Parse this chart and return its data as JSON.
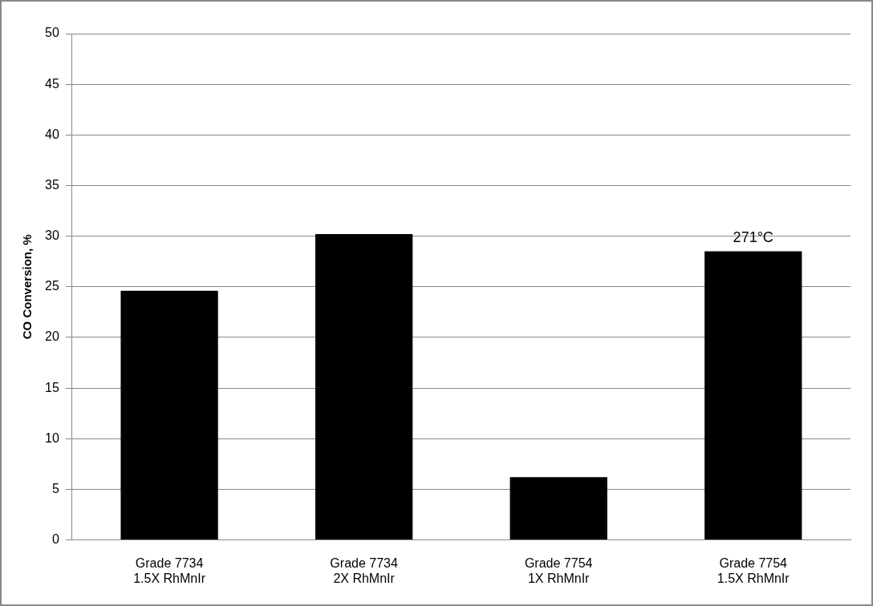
{
  "chart_data": {
    "type": "bar",
    "ylabel": "CO Conversion, %",
    "categories": [
      "Grade 7734\n1.5X RhMnIr",
      "Grade 7734\n2X RhMnIr",
      "Grade 7754\n1X RhMnIr",
      "Grade 7754\n1.5X RhMnIr"
    ],
    "values": [
      24.6,
      30.2,
      6.2,
      28.5
    ],
    "color": "#000000",
    "ylim": [
      0,
      50
    ],
    "yticks": [
      0,
      5,
      10,
      15,
      20,
      25,
      30,
      35,
      40,
      45,
      50
    ],
    "grid": "y",
    "annotations": [
      {
        "text": "271°C",
        "x": "Grade 7754\n1.5X RhMnIr",
        "y": 28.5
      }
    ]
  }
}
